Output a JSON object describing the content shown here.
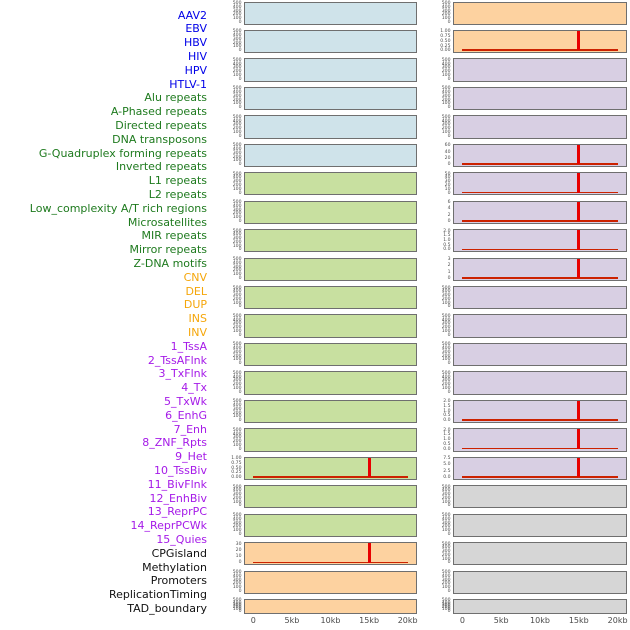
{
  "chart_data": {
    "type": "line",
    "title": "",
    "description": "Two-column genome signal track figure; each mini panel shows signal over a 0-20kb window; red trace is flat at zero except tracks with a sharp peak at ~15kb.",
    "x_axis": {
      "tick_labels": [
        "0",
        "5kb",
        "10kb",
        "15kb",
        "20kb"
      ],
      "range_kb": [
        0,
        20
      ]
    },
    "groups": {
      "virus": {
        "label_color": "#0000e8",
        "fill": "#cfe3ea"
      },
      "repeats": {
        "label_color": "#1e7a1e",
        "fill": "#c8e0a0"
      },
      "sv": {
        "label_color": "#f5a60a",
        "fill": "#fdd2a0"
      },
      "chromatin": {
        "label_color": "#a51ae8",
        "fill": "#d8cfe3"
      },
      "other": {
        "label_color": "#111111",
        "fill": "#d6d6d6"
      }
    },
    "signal_color": "#e80000",
    "baseline_color": "#cc2200",
    "tracks": [
      {
        "label": "AAV2",
        "group": "virus",
        "column": "left",
        "row": 0,
        "y_ticks": [
          "500",
          "400",
          "300",
          "200",
          "100",
          "0"
        ],
        "peak_at_kb": null
      },
      {
        "label": "EBV",
        "group": "virus",
        "column": "left",
        "row": 1,
        "y_ticks": [
          "500",
          "400",
          "300",
          "200",
          "100",
          "0"
        ],
        "peak_at_kb": null
      },
      {
        "label": "HBV",
        "group": "virus",
        "column": "left",
        "row": 2,
        "y_ticks": [
          "500",
          "400",
          "300",
          "200",
          "100",
          "0"
        ],
        "peak_at_kb": null
      },
      {
        "label": "HIV",
        "group": "virus",
        "column": "left",
        "row": 3,
        "y_ticks": [
          "500",
          "400",
          "300",
          "200",
          "100",
          "0"
        ],
        "peak_at_kb": null
      },
      {
        "label": "HPV",
        "group": "virus",
        "column": "left",
        "row": 4,
        "y_ticks": [
          "500",
          "400",
          "300",
          "200",
          "100",
          "0"
        ],
        "peak_at_kb": null
      },
      {
        "label": "HTLV-1",
        "group": "virus",
        "column": "left",
        "row": 5,
        "y_ticks": [
          "500",
          "400",
          "300",
          "200",
          "100",
          "0"
        ],
        "peak_at_kb": null
      },
      {
        "label": "Alu repeats",
        "group": "repeats",
        "column": "left",
        "row": 6,
        "y_ticks": [
          "500",
          "400",
          "300",
          "200",
          "100",
          "0"
        ],
        "peak_at_kb": null
      },
      {
        "label": "A-Phased repeats",
        "group": "repeats",
        "column": "left",
        "row": 7,
        "y_ticks": [
          "500",
          "400",
          "300",
          "200",
          "100",
          "0"
        ],
        "peak_at_kb": null
      },
      {
        "label": "Directed repeats",
        "group": "repeats",
        "column": "left",
        "row": 8,
        "y_ticks": [
          "500",
          "400",
          "300",
          "200",
          "100",
          "0"
        ],
        "peak_at_kb": null
      },
      {
        "label": "DNA transposons",
        "group": "repeats",
        "column": "left",
        "row": 9,
        "y_ticks": [
          "500",
          "400",
          "300",
          "200",
          "100",
          "0"
        ],
        "peak_at_kb": null
      },
      {
        "label": "G-Quadruplex forming repeats",
        "group": "repeats",
        "column": "left",
        "row": 10,
        "y_ticks": [
          "500",
          "400",
          "300",
          "200",
          "100",
          "0"
        ],
        "peak_at_kb": null
      },
      {
        "label": "Inverted repeats",
        "group": "repeats",
        "column": "left",
        "row": 11,
        "y_ticks": [
          "500",
          "400",
          "300",
          "200",
          "100",
          "0"
        ],
        "peak_at_kb": null
      },
      {
        "label": "L1 repeats",
        "group": "repeats",
        "column": "left",
        "row": 12,
        "y_ticks": [
          "500",
          "400",
          "300",
          "200",
          "100",
          "0"
        ],
        "peak_at_kb": null
      },
      {
        "label": "L2 repeats",
        "group": "repeats",
        "column": "left",
        "row": 13,
        "y_ticks": [
          "500",
          "400",
          "300",
          "200",
          "100",
          "0"
        ],
        "peak_at_kb": null
      },
      {
        "label": "Low_complexity A/T rich regions",
        "group": "repeats",
        "column": "left",
        "row": 14,
        "y_ticks": [
          "500",
          "400",
          "300",
          "200",
          "100",
          "0"
        ],
        "peak_at_kb": null
      },
      {
        "label": "Microsatellites",
        "group": "repeats",
        "column": "left",
        "row": 15,
        "y_ticks": [
          "500",
          "400",
          "300",
          "200",
          "100",
          "0"
        ],
        "peak_at_kb": null
      },
      {
        "label": "MIR repeats",
        "group": "repeats",
        "column": "left",
        "row": 16,
        "y_ticks": [
          "1.00",
          "0.75",
          "0.50",
          "0.25",
          "0.00"
        ],
        "peak_at_kb": 15
      },
      {
        "label": "Mirror repeats",
        "group": "repeats",
        "column": "left",
        "row": 17,
        "y_ticks": [
          "500",
          "400",
          "300",
          "200",
          "100",
          "0"
        ],
        "peak_at_kb": null
      },
      {
        "label": "Z-DNA motifs",
        "group": "repeats",
        "column": "left",
        "row": 18,
        "y_ticks": [
          "500",
          "400",
          "300",
          "200",
          "100",
          "0"
        ],
        "peak_at_kb": null
      },
      {
        "label": "CNV",
        "group": "sv",
        "column": "left",
        "row": 19,
        "y_ticks": [
          "30",
          "20",
          "10",
          "0"
        ],
        "peak_at_kb": 15
      },
      {
        "label": "DEL",
        "group": "sv",
        "column": "left",
        "row": 20,
        "y_ticks": [
          "500",
          "400",
          "300",
          "200",
          "100",
          "0"
        ],
        "peak_at_kb": null
      },
      {
        "label": "DUP",
        "group": "sv",
        "column": "left",
        "row": 21,
        "y_ticks": [
          "500",
          "400",
          "300",
          "200",
          "100",
          "0"
        ],
        "peak_at_kb": null
      },
      {
        "label": "INS",
        "group": "sv",
        "column": "right",
        "row": 0,
        "y_ticks": [
          "500",
          "400",
          "300",
          "200",
          "100",
          "0"
        ],
        "peak_at_kb": null
      },
      {
        "label": "INV",
        "group": "sv",
        "column": "right",
        "row": 1,
        "y_ticks": [
          "1.00",
          "0.75",
          "0.50",
          "0.25",
          "0.00"
        ],
        "peak_at_kb": 15
      },
      {
        "label": "1_TssA",
        "group": "chromatin",
        "column": "right",
        "row": 2,
        "y_ticks": [
          "500",
          "400",
          "300",
          "200",
          "100",
          "0"
        ],
        "peak_at_kb": null
      },
      {
        "label": "2_TssAFlnk",
        "group": "chromatin",
        "column": "right",
        "row": 3,
        "y_ticks": [
          "500",
          "400",
          "300",
          "200",
          "100",
          "0"
        ],
        "peak_at_kb": null
      },
      {
        "label": "3_TxFlnk",
        "group": "chromatin",
        "column": "right",
        "row": 4,
        "y_ticks": [
          "500",
          "400",
          "300",
          "200",
          "100",
          "0"
        ],
        "peak_at_kb": null
      },
      {
        "label": "4_Tx",
        "group": "chromatin",
        "column": "right",
        "row": 5,
        "y_ticks": [
          "60",
          "40",
          "20",
          "0"
        ],
        "peak_at_kb": 15
      },
      {
        "label": "5_TxWk",
        "group": "chromatin",
        "column": "right",
        "row": 6,
        "y_ticks": [
          "50",
          "40",
          "30",
          "20",
          "10",
          "0"
        ],
        "peak_at_kb": 15
      },
      {
        "label": "6_EnhG",
        "group": "chromatin",
        "column": "right",
        "row": 7,
        "y_ticks": [
          "6",
          "4",
          "2",
          "0"
        ],
        "peak_at_kb": 15
      },
      {
        "label": "7_Enh",
        "group": "chromatin",
        "column": "right",
        "row": 8,
        "y_ticks": [
          "2.0",
          "1.5",
          "1.0",
          "0.5",
          "0.0"
        ],
        "peak_at_kb": 15
      },
      {
        "label": "8_ZNF_Rpts",
        "group": "chromatin",
        "column": "right",
        "row": 9,
        "y_ticks": [
          "3",
          "2",
          "1",
          "0"
        ],
        "peak_at_kb": 15
      },
      {
        "label": "9_Het",
        "group": "chromatin",
        "column": "right",
        "row": 10,
        "y_ticks": [
          "500",
          "400",
          "300",
          "200",
          "100",
          "0"
        ],
        "peak_at_kb": null
      },
      {
        "label": "10_TssBiv",
        "group": "chromatin",
        "column": "right",
        "row": 11,
        "y_ticks": [
          "500",
          "400",
          "300",
          "200",
          "100",
          "0"
        ],
        "peak_at_kb": null
      },
      {
        "label": "11_BivFlnk",
        "group": "chromatin",
        "column": "right",
        "row": 12,
        "y_ticks": [
          "500",
          "400",
          "300",
          "200",
          "100",
          "0"
        ],
        "peak_at_kb": null
      },
      {
        "label": "12_EnhBiv",
        "group": "chromatin",
        "column": "right",
        "row": 13,
        "y_ticks": [
          "500",
          "400",
          "300",
          "200",
          "100",
          "0"
        ],
        "peak_at_kb": null
      },
      {
        "label": "13_ReprPC",
        "group": "chromatin",
        "column": "right",
        "row": 14,
        "y_ticks": [
          "2.0",
          "1.5",
          "1.0",
          "0.5",
          "0.0"
        ],
        "peak_at_kb": 15
      },
      {
        "label": "14_ReprPCWk",
        "group": "chromatin",
        "column": "right",
        "row": 15,
        "y_ticks": [
          "2.0",
          "1.5",
          "1.0",
          "0.5",
          "0.0"
        ],
        "peak_at_kb": 15
      },
      {
        "label": "15_Quies",
        "group": "chromatin",
        "column": "right",
        "row": 16,
        "y_ticks": [
          "7.5",
          "5.0",
          "2.5",
          "0.0"
        ],
        "peak_at_kb": 15
      },
      {
        "label": "CPGisland",
        "group": "other",
        "column": "right",
        "row": 17,
        "y_ticks": [
          "500",
          "400",
          "300",
          "200",
          "100",
          "0"
        ],
        "peak_at_kb": null
      },
      {
        "label": "Methylation",
        "group": "other",
        "column": "right",
        "row": 18,
        "y_ticks": [
          "500",
          "400",
          "300",
          "200",
          "100",
          "0"
        ],
        "peak_at_kb": null
      },
      {
        "label": "Promoters",
        "group": "other",
        "column": "right",
        "row": 19,
        "y_ticks": [
          "500",
          "400",
          "300",
          "200",
          "100",
          "0"
        ],
        "peak_at_kb": null
      },
      {
        "label": "ReplicationTiming",
        "group": "other",
        "column": "right",
        "row": 20,
        "y_ticks": [
          "500",
          "400",
          "300",
          "200",
          "100",
          "0"
        ],
        "peak_at_kb": null
      },
      {
        "label": "TAD_boundary",
        "group": "other",
        "column": "right",
        "row": 21,
        "y_ticks": [
          "500",
          "400",
          "300",
          "200",
          "100",
          "0"
        ],
        "peak_at_kb": null
      }
    ]
  }
}
